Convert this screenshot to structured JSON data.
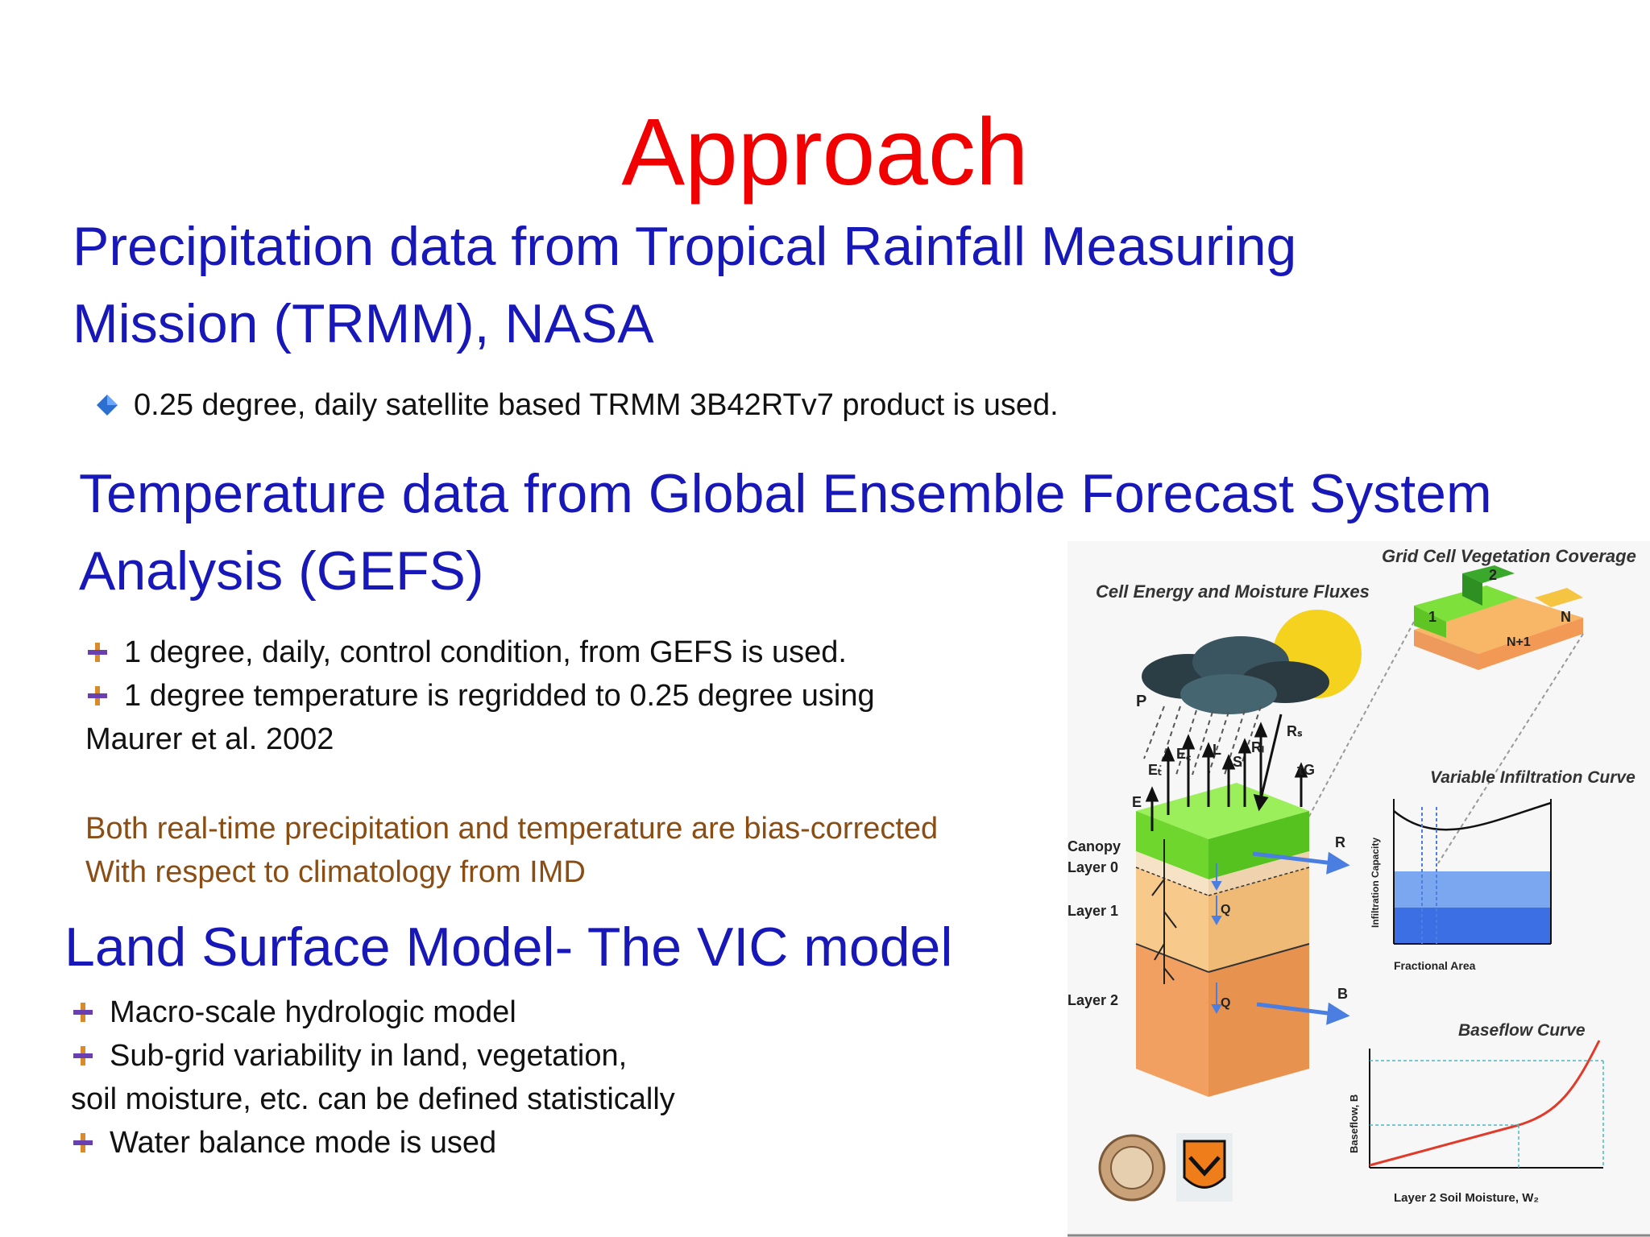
{
  "title": "Approach",
  "sections": {
    "precip": {
      "heading_line1": "Precipitation data from Tropical Rainfall Measuring",
      "heading_line2": "Mission (TRMM), NASA",
      "bullet1": "0.25 degree, daily satellite based TRMM 3B42RTv7 product is used."
    },
    "temp": {
      "heading_line1": "Temperature data from Global Ensemble Forecast System",
      "heading_line2": "Analysis (GEFS)",
      "bullet1": "1 degree, daily,  control condition, from GEFS is used.",
      "bullet2": "1 degree temperature is regridded to 0.25 degree using",
      "bullet2_cont": "Maurer et al. 2002",
      "note_line1": "Both real-time precipitation and temperature are bias-corrected",
      "note_line2": "With respect to climatology from IMD"
    },
    "lsm": {
      "heading": "Land Surface Model- The VIC model",
      "bullet1": "Macro-scale hydrologic model",
      "bullet2": "Sub-grid variability in land, vegetation,",
      "bullet2_cont": "soil moisture, etc. can be defined statistically",
      "bullet3": "Water balance mode is used"
    }
  },
  "diagram": {
    "grid_cell_title": "Grid Cell Vegetation Coverage",
    "fluxes_title": "Cell Energy and Moisture Fluxes",
    "infiltration_title": "Variable Infiltration Curve",
    "baseflow_title": "Baseflow Curve",
    "layer_canopy": "Canopy",
    "layer_0": "Layer 0",
    "layer_1": "Layer 1",
    "layer_2": "Layer 2",
    "flux_p": "P",
    "flux_e": "E",
    "flux_et": "Eₜ",
    "flux_ec": "E꜀",
    "flux_l": "L",
    "flux_s": "S",
    "flux_rl": "Rₗ",
    "flux_rs": "Rₛ",
    "flux_tg": "τG",
    "flux_r": "R",
    "flux_b": "B",
    "flux_q": "Q",
    "veg_1": "1",
    "veg_2": "2",
    "veg_n": "N",
    "veg_n1": "N+1",
    "infil_xlabel": "Fractional Area",
    "infil_ylabel": "Infiltration Capacity",
    "baseflow_xlabel": "Layer 2 Soil Moisture, W₂",
    "baseflow_ylabel": "Baseflow, B",
    "colors": {
      "canopy": "#7ee03a",
      "layer0": "#f6e2c4",
      "layer1": "#f7c98b",
      "layer2": "#f2a061",
      "sun": "#f5d21d",
      "arrow_blue": "#4a7ee0",
      "curve_red": "#e03a2a"
    }
  }
}
